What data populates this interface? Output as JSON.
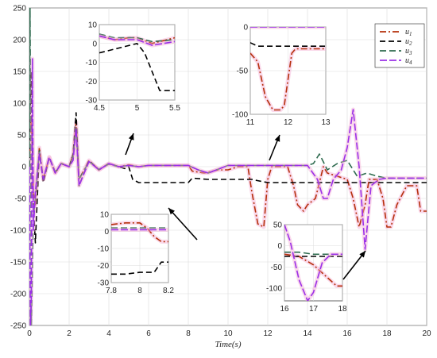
{
  "chart_data": {
    "type": "line",
    "xlabel": "Time(s)",
    "ylabel": "",
    "xlim": [
      0,
      20
    ],
    "ylim": [
      -250,
      250
    ],
    "xticks": [
      0,
      2,
      4,
      6,
      8,
      10,
      12,
      14,
      16,
      18,
      20
    ],
    "yticks": [
      -250,
      -200,
      -150,
      -100,
      -50,
      0,
      50,
      100,
      150,
      200,
      250
    ],
    "grid": true,
    "legend_position": "top-right",
    "series": [
      {
        "name": "u1",
        "color": "#b5300b",
        "dash": "8 3 2 3",
        "x": [
          0,
          0.1,
          0.2,
          0.3,
          0.5,
          0.7,
          1.0,
          1.3,
          1.6,
          2.0,
          2.2,
          2.35,
          2.5,
          3.0,
          3.5,
          4.0,
          4.5,
          5.0,
          5.5,
          6.0,
          7.0,
          8.0,
          8.2,
          8.8,
          9.5,
          10.0,
          10.5,
          11.0,
          11.2,
          11.5,
          11.8,
          12.0,
          12.2,
          12.5,
          13.0,
          13.3,
          13.5,
          13.8,
          14.0,
          14.4,
          14.8,
          15.0,
          15.5,
          16.0,
          16.3,
          16.6,
          16.9,
          17.1,
          17.5,
          17.8,
          18.0,
          18.2,
          18.5,
          19.0,
          19.5,
          19.7,
          20.0
        ],
        "y": [
          0,
          80,
          -40,
          -60,
          30,
          -20,
          15,
          -10,
          5,
          0,
          20,
          70,
          -20,
          10,
          -5,
          5,
          0,
          3,
          0,
          2,
          2,
          2,
          -7,
          -10,
          -5,
          -5,
          0,
          0,
          -40,
          -90,
          -95,
          -20,
          0,
          0,
          0,
          -30,
          -60,
          -70,
          -60,
          -50,
          0,
          -10,
          -15,
          -20,
          -50,
          -95,
          -60,
          -20,
          -20,
          -50,
          -95,
          -95,
          -60,
          -30,
          -30,
          -70,
          -70
        ]
      },
      {
        "name": "u2",
        "color": "#000000",
        "dash": "7 4",
        "x": [
          0,
          0.08,
          0.2,
          0.3,
          0.5,
          0.7,
          1.0,
          1.3,
          1.6,
          2.0,
          2.2,
          2.35,
          2.5,
          3.0,
          3.5,
          4.0,
          4.5,
          4.8,
          5.0,
          5.2,
          5.5,
          6.0,
          7.0,
          8.0,
          8.2,
          9.0,
          10.0,
          11.0,
          11.2,
          11.5,
          12.0,
          13.0,
          14.0,
          15.0,
          16.0,
          17.0,
          18.0,
          19.0,
          20.0
        ],
        "y": [
          0,
          150,
          -60,
          -120,
          25,
          -25,
          15,
          -10,
          5,
          0,
          20,
          85,
          -30,
          10,
          -5,
          5,
          0,
          -3,
          0,
          -20,
          -25,
          -25,
          -25,
          -25,
          -18,
          -20,
          -20,
          -20,
          -20,
          -22,
          -25,
          -25,
          -25,
          -25,
          -25,
          -25,
          -25,
          -25,
          -25
        ]
      },
      {
        "name": "u3",
        "color": "#2e6b4f",
        "dash": "8 4",
        "x": [
          0,
          0.03,
          0.1,
          0.2,
          0.3,
          0.5,
          0.7,
          1.0,
          1.3,
          1.6,
          2.0,
          2.2,
          2.35,
          2.5,
          3.0,
          3.5,
          4.0,
          4.5,
          5.0,
          5.5,
          6.0,
          7.0,
          8.0,
          8.5,
          9.0,
          10.0,
          11.0,
          12.0,
          13.0,
          14.0,
          14.3,
          14.6,
          15.0,
          15.5,
          16.0,
          16.5,
          17.0,
          17.5,
          18.0,
          19.0,
          20.0
        ],
        "y": [
          0,
          250,
          -250,
          -80,
          -50,
          25,
          -20,
          15,
          -8,
          5,
          0,
          15,
          60,
          -20,
          8,
          -4,
          4,
          0,
          2,
          0,
          2,
          2,
          2,
          -5,
          -10,
          2,
          2,
          2,
          2,
          2,
          5,
          20,
          -5,
          5,
          10,
          -15,
          -10,
          -15,
          -18,
          -18,
          -18
        ]
      },
      {
        "name": "u4",
        "color": "#9b30e8",
        "dash": "9 3",
        "x": [
          0,
          0.05,
          0.1,
          0.15,
          0.2,
          0.3,
          0.5,
          0.7,
          1.0,
          1.3,
          1.6,
          2.0,
          2.2,
          2.35,
          2.5,
          3.0,
          3.5,
          4.0,
          4.5,
          5.0,
          5.5,
          6.0,
          7.0,
          8.0,
          8.5,
          9.0,
          10.0,
          11.0,
          12.0,
          13.0,
          14.0,
          14.5,
          14.8,
          15.0,
          15.3,
          15.7,
          16.0,
          16.3,
          16.6,
          16.9,
          17.2,
          17.6,
          18.0,
          19.0,
          20.0
        ],
        "y": [
          0,
          -250,
          -200,
          170,
          -100,
          -40,
          20,
          -20,
          15,
          -10,
          5,
          0,
          10,
          60,
          -30,
          8,
          -5,
          5,
          0,
          2,
          0,
          2,
          2,
          2,
          -5,
          -10,
          2,
          2,
          2,
          2,
          2,
          -20,
          -50,
          -50,
          -20,
          -5,
          30,
          90,
          0,
          -130,
          -30,
          -20,
          -18,
          -18,
          -18
        ]
      }
    ],
    "insets": [
      {
        "xlim": [
          4.5,
          5.5
        ],
        "ylim": [
          -30,
          10
        ],
        "xticks": [
          4.5,
          5,
          5.5
        ],
        "yticks": [
          -30,
          -20,
          -10,
          0,
          10
        ],
        "xticklabels": [
          "4.5",
          "5",
          "5.5"
        ],
        "yticklabels": [
          "-30",
          "-20",
          "-10",
          "0",
          "10"
        ],
        "series": [
          {
            "x": [
              4.5,
              4.7,
              4.9,
              5.0,
              5.2,
              5.5
            ],
            "y": [
              4,
              2,
              3,
              3,
              0,
              3
            ]
          },
          {
            "x": [
              4.5,
              4.6,
              4.8,
              5.0,
              5.1,
              5.2,
              5.3,
              5.5
            ],
            "y": [
              -5,
              -4,
              -2,
              0,
              -5,
              -15,
              -25,
              -25
            ]
          },
          {
            "x": [
              4.5,
              4.7,
              5.0,
              5.2,
              5.5
            ],
            "y": [
              5,
              3,
              3,
              1,
              2
            ]
          },
          {
            "x": [
              4.5,
              4.7,
              5.0,
              5.2,
              5.5
            ],
            "y": [
              4,
              2,
              2,
              -1,
              1
            ]
          }
        ]
      },
      {
        "xlim": [
          11,
          13
        ],
        "ylim": [
          -100,
          0
        ],
        "xticks": [
          11,
          12,
          13
        ],
        "yticks": [
          -100,
          -50,
          0
        ],
        "xticklabels": [
          "11",
          "12",
          "13"
        ],
        "yticklabels": [
          "-100",
          "-50",
          "0"
        ],
        "series": [
          {
            "x": [
              11,
              11.2,
              11.4,
              11.6,
              11.8,
              11.9,
              12.0,
              12.1,
              12.2,
              12.6,
              13.0
            ],
            "y": [
              -30,
              -40,
              -80,
              -95,
              -95,
              -90,
              -60,
              -30,
              -25,
              -25,
              -25
            ]
          },
          {
            "x": [
              11,
              11.2,
              11.4,
              12.0,
              13.0
            ],
            "y": [
              -18,
              -22,
              -22,
              -22,
              -22
            ]
          },
          {
            "x": [
              11,
              11.5,
              12.0,
              12.5,
              13.0
            ],
            "y": [
              2,
              2,
              2,
              2,
              2
            ]
          },
          {
            "x": [
              11,
              11.5,
              12.0,
              12.5,
              13.0
            ],
            "y": [
              0,
              0,
              0,
              0,
              0
            ]
          }
        ]
      },
      {
        "xlim": [
          7.8,
          8.2
        ],
        "ylim": [
          -30,
          10
        ],
        "xticks": [
          7.8,
          8,
          8.2
        ],
        "yticks": [
          -30,
          -20,
          -10,
          0,
          10
        ],
        "xticklabels": [
          "7.8",
          "8",
          "8.2"
        ],
        "yticklabels": [
          "-30",
          "-20",
          "-10",
          "0",
          "10"
        ],
        "series": [
          {
            "x": [
              7.8,
              7.9,
              8.0,
              8.05,
              8.1,
              8.15,
              8.2
            ],
            "y": [
              4,
              5,
              5,
              2,
              -3,
              -6,
              -6
            ]
          },
          {
            "x": [
              7.8,
              7.9,
              8.0,
              8.1,
              8.15,
              8.2
            ],
            "y": [
              -25,
              -25,
              -24,
              -24,
              -18,
              -18
            ]
          },
          {
            "x": [
              7.8,
              7.9,
              8.0,
              8.1,
              8.2
            ],
            "y": [
              2,
              2,
              2,
              2,
              2
            ]
          },
          {
            "x": [
              7.8,
              7.9,
              8.0,
              8.1,
              8.2
            ],
            "y": [
              1,
              1,
              1,
              1,
              1
            ]
          }
        ]
      },
      {
        "xlim": [
          16,
          18
        ],
        "ylim": [
          -130,
          50
        ],
        "xticks": [
          16,
          17,
          18
        ],
        "yticks": [
          -100,
          -50,
          0,
          50
        ],
        "xticklabels": [
          "16",
          "17",
          "18"
        ],
        "yticklabels": [
          "-100",
          "-50",
          "0",
          "50"
        ],
        "series": [
          {
            "x": [
              16,
              16.5,
              17.0,
              17.4,
              17.8,
              18.0
            ],
            "y": [
              -20,
              -25,
              -45,
              -70,
              -95,
              -95
            ]
          },
          {
            "x": [
              16,
              17,
              18
            ],
            "y": [
              -25,
              -25,
              -25
            ]
          },
          {
            "x": [
              16,
              16.5,
              17.0,
              17.5,
              18.0
            ],
            "y": [
              -15,
              -15,
              -20,
              -20,
              -20
            ]
          },
          {
            "x": [
              16,
              16.2,
              16.5,
              16.8,
              17.0,
              17.3,
              17.6,
              18.0
            ],
            "y": [
              50,
              10,
              -80,
              -130,
              -110,
              -40,
              -20,
              -20
            ]
          }
        ]
      }
    ]
  }
}
